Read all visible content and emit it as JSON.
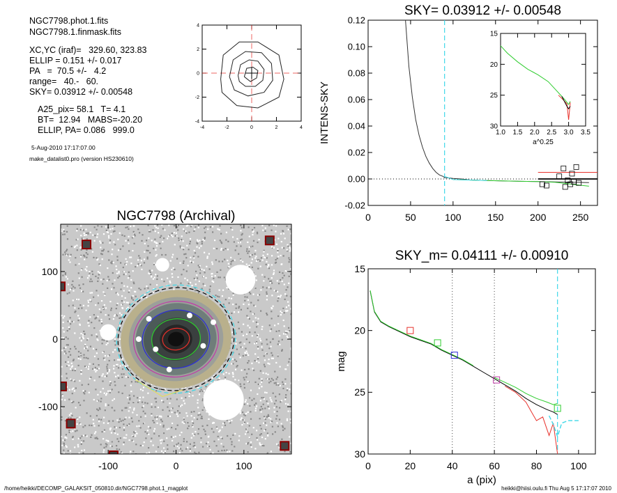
{
  "header_info": {
    "file1": "NGC7798.phot.1.fits",
    "file2": "NGC7798.1.finmask.fits",
    "xcyc": "XC,YC (iraf)=   329.60, 323.83",
    "ellip": "ELLIP = 0.151 +/- 0.017",
    "pa": "PA   =  70.5 +/-   4.2",
    "range": "range=   40.-   60.",
    "sky": "SKY= 0.03912 +/- 0.00548",
    "a25": "A25_pix= 58.1   T= 4.1",
    "bt": "BT=  12.94   MABS=-20.20",
    "ellip_pa": "ELLIP, PA= 0.086   999.0",
    "date": "5-Aug-2010 17:17:07.00",
    "program": "make_datalist0.pro (version HS230610)"
  },
  "footer": {
    "path": "/home/heikki/DECOMP_GALAKSIT_050810.dir/NGC7798.phot.1_magplot",
    "user": "heikki@hiisi.oulu.fi  Thu Aug  5 17:17:07 2010"
  },
  "colors": {
    "black": "#000000",
    "red": "#e8312b",
    "green": "#2ecc2e",
    "blue": "#2a2ad8",
    "cyan": "#3fd8e8",
    "magenta": "#c03aa8",
    "orange": "#e89a3a",
    "grey": "#888888"
  },
  "chart_data": [
    {
      "id": "contour",
      "type": "scatter",
      "title": "",
      "xlim": [
        -4,
        4
      ],
      "ylim": [
        -4,
        4
      ],
      "xticks": [
        "-4",
        "-2",
        "0",
        "2",
        "4"
      ],
      "yticks": [
        "-4",
        "-2",
        "0",
        "2",
        "4"
      ],
      "contours": [
        [
          [
            -2.5,
            -0.5
          ],
          [
            -2.3,
            1.5
          ],
          [
            -1.0,
            2.6
          ],
          [
            0.5,
            2.6
          ],
          [
            2.2,
            1.5
          ],
          [
            2.6,
            -0.5
          ],
          [
            2.2,
            -2.0
          ],
          [
            0.5,
            -2.9
          ],
          [
            -1.2,
            -2.7
          ],
          [
            -2.4,
            -1.6
          ],
          [
            -2.5,
            -0.5
          ]
        ],
        [
          [
            -1.8,
            -0.3
          ],
          [
            -1.5,
            1.1
          ],
          [
            -0.5,
            1.8
          ],
          [
            0.8,
            1.7
          ],
          [
            1.6,
            0.8
          ],
          [
            1.7,
            -0.6
          ],
          [
            1.0,
            -1.6
          ],
          [
            -0.3,
            -1.9
          ],
          [
            -1.4,
            -1.4
          ],
          [
            -1.8,
            -0.3
          ]
        ],
        [
          [
            -1.1,
            -0.2
          ],
          [
            -0.9,
            0.7
          ],
          [
            -0.2,
            1.1
          ],
          [
            0.5,
            1.0
          ],
          [
            1.0,
            0.3
          ],
          [
            0.9,
            -0.6
          ],
          [
            0.3,
            -1.1
          ],
          [
            -0.5,
            -1.1
          ],
          [
            -1.0,
            -0.7
          ],
          [
            -1.1,
            -0.2
          ]
        ],
        [
          [
            -0.6,
            -0.3
          ],
          [
            -0.4,
            0.4
          ],
          [
            0.1,
            0.5
          ],
          [
            0.5,
            0.2
          ],
          [
            0.4,
            -0.4
          ],
          [
            -0.1,
            -0.7
          ],
          [
            -0.6,
            -0.3
          ]
        ]
      ],
      "crosshair": [
        0,
        0
      ]
    },
    {
      "id": "image",
      "type": "scatter",
      "title": "NGC7798 (Archival)",
      "xlim": [
        -170,
        170
      ],
      "ylim": [
        -170,
        170
      ],
      "xticks": [
        "-100",
        "0",
        "100"
      ],
      "yticks": [
        "-100",
        "0",
        "100"
      ],
      "isophote_semi_axes": [
        {
          "a": 88,
          "b": 80,
          "color": "#3fd8e8",
          "dash": true
        },
        {
          "a": 86,
          "b": 76,
          "color": "#000000",
          "dash": true
        },
        {
          "a": 63,
          "b": 56,
          "color": "#c03aa8",
          "dash": false
        },
        {
          "a": 50,
          "b": 43,
          "color": "#2a2ad8",
          "dash": false
        },
        {
          "a": 36,
          "b": 30,
          "color": "#2ecc2e",
          "dash": false
        },
        {
          "a": 20,
          "b": 16,
          "color": "#e8312b",
          "dash": false
        }
      ],
      "masked_stars": [
        [
          -132,
          140
        ],
        [
          138,
          146
        ],
        [
          -170,
          78
        ],
        [
          -168,
          -70
        ],
        [
          -155,
          -125
        ],
        [
          -92,
          -172
        ],
        [
          160,
          -158
        ]
      ]
    },
    {
      "id": "profile",
      "type": "line",
      "title": "SKY= 0.03912 +/- 0.00548",
      "xlabel": "",
      "ylabel": "INTENS-SKY",
      "xlim": [
        0,
        270
      ],
      "ylim": [
        -0.02,
        0.12
      ],
      "xticks": [
        "0",
        "50",
        "100",
        "150",
        "200",
        "250"
      ],
      "yticks": [
        "-0.02",
        "0.00",
        "0.02",
        "0.04",
        "0.06",
        "0.08",
        "0.10",
        "0.12"
      ],
      "vline_x": 90,
      "series": [
        {
          "x": [
            44,
            48,
            52,
            56,
            60,
            64,
            68,
            72,
            76,
            80,
            84,
            88,
            90,
            95,
            100,
            110,
            120,
            140,
            160,
            180,
            200,
            220,
            240,
            260
          ],
          "y": [
            0.12,
            0.085,
            0.062,
            0.045,
            0.033,
            0.024,
            0.017,
            0.012,
            0.008,
            0.005,
            0.003,
            0.002,
            0.001,
            0.0008,
            0.0004,
            0.0,
            -0.0008,
            -0.0012,
            -0.0015,
            -0.0018,
            -0.002,
            -0.0022,
            -0.0025,
            -0.0028
          ]
        },
        {
          "x": [
            100,
            140,
            180,
            200,
            220,
            240,
            260
          ],
          "y": [
            -0.0005,
            -0.0012,
            -0.0018,
            -0.002,
            -0.0025,
            -0.004,
            -0.0055
          ]
        },
        {
          "x": [
            200,
            270
          ],
          "y": [
            0.005,
            0.005
          ]
        },
        {
          "x": [
            200,
            270
          ],
          "y": [
            0.0,
            0.0
          ]
        }
      ],
      "squares": [
        [
          205,
          -0.004
        ],
        [
          210,
          -0.005
        ],
        [
          225,
          0.002
        ],
        [
          230,
          0.008
        ],
        [
          235,
          -0.001
        ],
        [
          238,
          -0.004
        ],
        [
          242,
          -0.002
        ],
        [
          245,
          0.009
        ],
        [
          248,
          -0.003
        ],
        [
          240,
          0.004
        ],
        [
          232,
          -0.006
        ]
      ],
      "inset": {
        "xlim": [
          1.0,
          3.5
        ],
        "ylim": [
          30,
          15
        ],
        "xticks": [
          "1.0",
          "1.5",
          "2.0",
          "2.5",
          "3.0",
          "3.5"
        ],
        "yticks": [
          "15",
          "20",
          "25",
          "30"
        ],
        "xlabel": "a^0.25",
        "series": [
          {
            "x": [
              1.0,
              1.2,
              1.5,
              1.8,
              2.1,
              2.4,
              2.6,
              2.8,
              2.9,
              3.0,
              3.05
            ],
            "y": [
              17.0,
              18.2,
              19.6,
              20.8,
              21.7,
              22.8,
              24.0,
              25.2,
              25.8,
              26.5,
              26.0
            ]
          },
          {
            "x": [
              2.7,
              2.85,
              2.95,
              3.0,
              3.05
            ],
            "y": [
              25.0,
              25.8,
              26.4,
              29.0,
              26.2
            ]
          },
          {
            "x": [
              2.8,
              2.95,
              3.0,
              3.05
            ],
            "y": [
              25.2,
              26.8,
              27.2,
              26.8
            ]
          }
        ]
      }
    },
    {
      "id": "magplot",
      "type": "line",
      "title": "SKY_m=  0.04111 +/- 0.00910",
      "xlabel": "a (pix)",
      "ylabel": "mag",
      "xlim": [
        0,
        108
      ],
      "ylim": [
        30,
        15
      ],
      "xticks": [
        "0",
        "20",
        "40",
        "60",
        "80",
        "100"
      ],
      "yticks": [
        "15",
        "20",
        "25",
        "30"
      ],
      "vlines": [
        40,
        60
      ],
      "cyan_vline": 90,
      "series": [
        {
          "x": [
            1,
            3,
            6,
            10,
            15,
            20,
            25,
            30,
            35,
            40,
            45,
            50,
            55,
            60,
            65,
            70,
            75,
            80,
            85,
            88,
            90
          ],
          "y": [
            16.8,
            18.5,
            19.3,
            19.7,
            20.1,
            20.5,
            20.8,
            21.1,
            21.6,
            22.0,
            22.4,
            22.9,
            23.4,
            23.9,
            24.4,
            24.9,
            25.5,
            26.0,
            26.4,
            26.6,
            26.8
          ]
        },
        {
          "x": [
            65,
            70,
            75,
            78,
            80,
            83,
            86,
            88,
            90
          ],
          "y": [
            24.5,
            25.0,
            25.8,
            26.7,
            27.3,
            27.0,
            28.5,
            27.5,
            30.0
          ]
        },
        {
          "x": [
            60,
            65,
            70,
            75,
            80,
            85,
            88,
            90
          ],
          "y": [
            23.8,
            24.2,
            24.6,
            25.1,
            25.5,
            25.8,
            26.0,
            25.9
          ]
        },
        {
          "x": [
            86,
            88,
            90,
            92,
            95,
            100
          ],
          "y": [
            26.9,
            27.6,
            28.6,
            27.5,
            27.3,
            27.3
          ]
        }
      ],
      "squares": [
        {
          "x": 20,
          "y": 20.0,
          "color": "#e8312b"
        },
        {
          "x": 33,
          "y": 21.0,
          "color": "#2ecc2e"
        },
        {
          "x": 41,
          "y": 22.0,
          "color": "#2a2ad8"
        },
        {
          "x": 61,
          "y": 24.0,
          "color": "#c03aa8"
        },
        {
          "x": 90,
          "y": 26.3,
          "color": "#2ecc2e"
        }
      ]
    }
  ]
}
